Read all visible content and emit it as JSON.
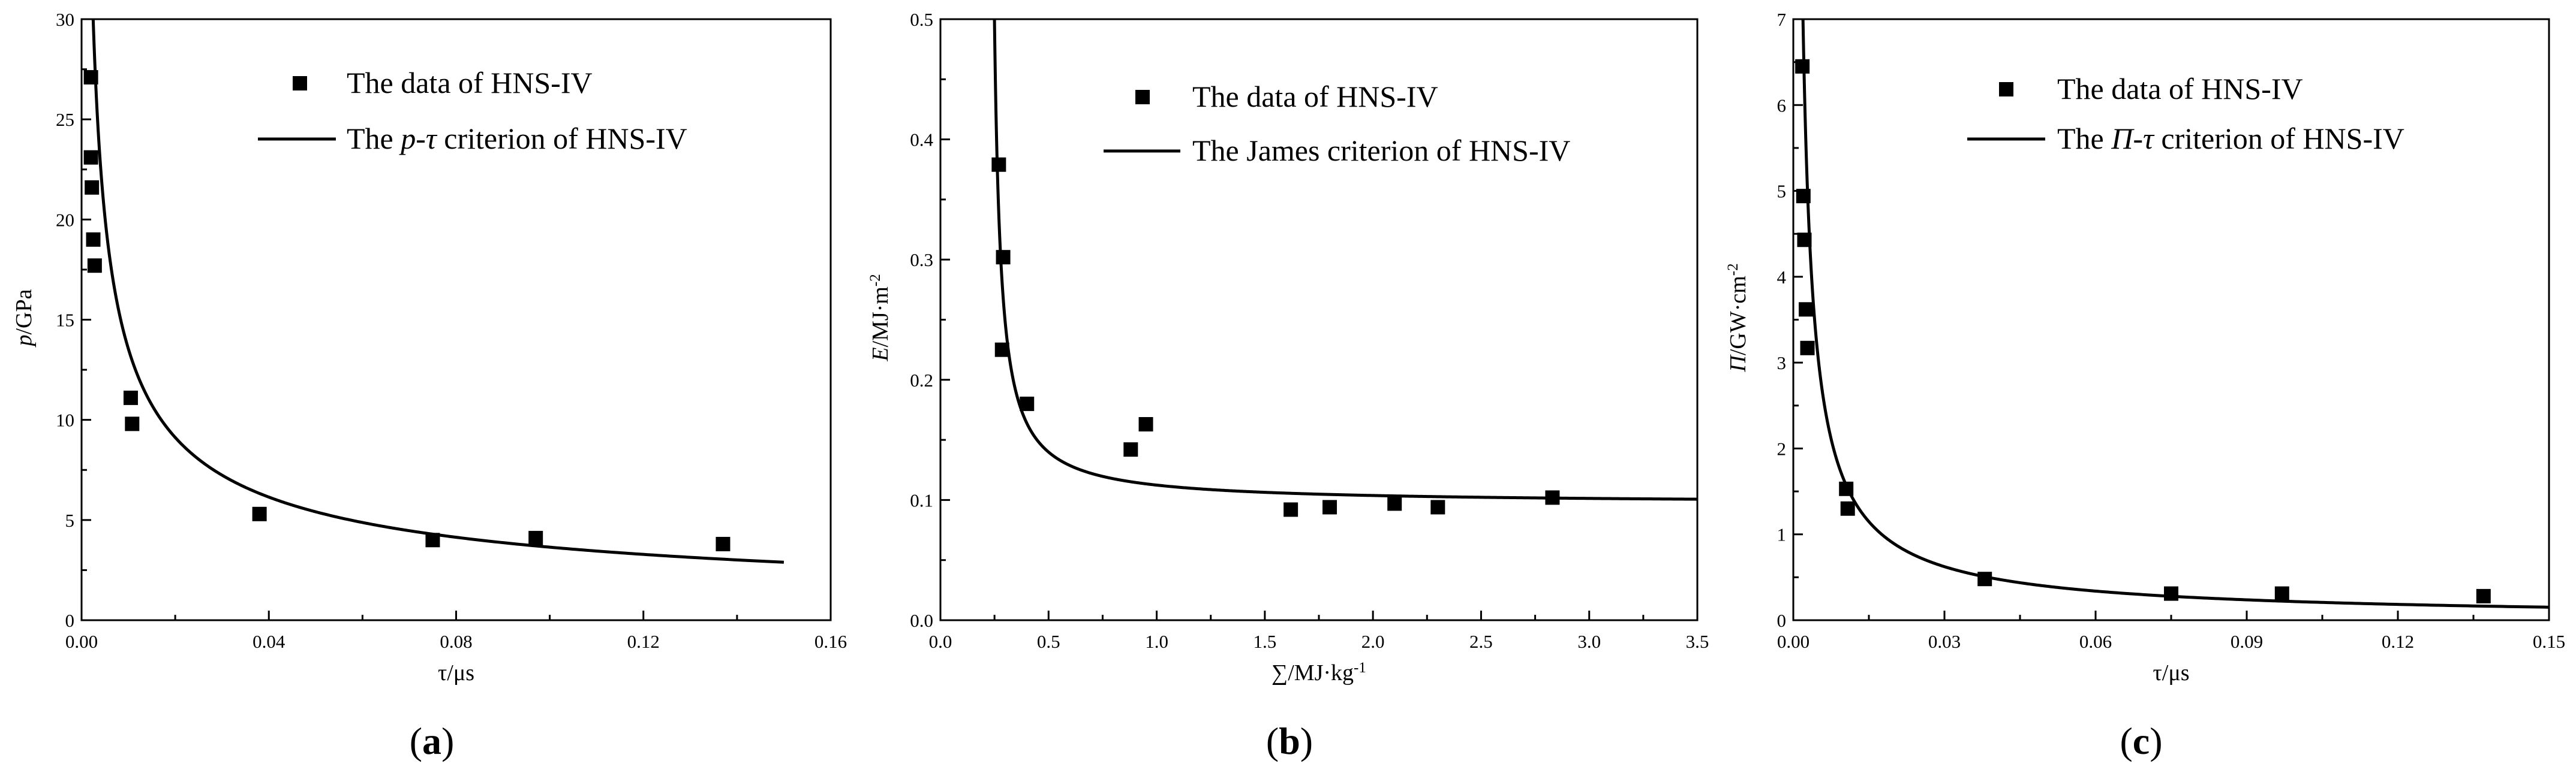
{
  "chart_data": [
    {
      "type": "scatter",
      "panel_label": "(a)",
      "panel_letter": "a",
      "xlabel": "τ/μs",
      "ylabel": "p/GPa",
      "ylabel_parts": [
        {
          "text": "p",
          "italic": true
        },
        {
          "text": "/GPa",
          "italic": false
        }
      ],
      "xlim": [
        0,
        0.16
      ],
      "ylim": [
        0,
        30
      ],
      "x_ticks": [
        0.0,
        0.04,
        0.08,
        0.12,
        0.16
      ],
      "x_tick_labels": [
        "0.00",
        "0.04",
        "0.08",
        "0.12",
        "0.16"
      ],
      "y_ticks": [
        0,
        5,
        10,
        15,
        20,
        25,
        30
      ],
      "y_tick_labels": [
        "0",
        "5",
        "10",
        "15",
        "20",
        "25",
        "30"
      ],
      "legend_position": "top-right",
      "series": [
        {
          "name": "The data of HNS-IV",
          "kind": "points",
          "x": [
            0.002,
            0.002,
            0.0022,
            0.0025,
            0.0028,
            0.0105,
            0.0108,
            0.038,
            0.075,
            0.097,
            0.137
          ],
          "y": [
            27.1,
            23.1,
            21.6,
            19.0,
            17.7,
            11.1,
            9.8,
            5.3,
            4.0,
            4.1,
            3.8
          ]
        },
        {
          "name": "The p-τ criterion of HNS-IV",
          "name_parts": [
            {
              "text": "The ",
              "italic": false
            },
            {
              "text": "p",
              "italic": true
            },
            {
              "text": "-",
              "italic": false
            },
            {
              "text": "τ",
              "italic": true
            },
            {
              "text": " criterion of HNS-IV",
              "italic": false
            }
          ],
          "kind": "curve",
          "model": "power",
          "coef": 0.981,
          "exponent": -0.57,
          "x_range": [
            0.0016,
            0.15
          ]
        }
      ]
    },
    {
      "type": "scatter",
      "panel_label": "(b)",
      "panel_letter": "b",
      "xlabel": "∑/MJ·kg-1",
      "xlabel_parts": [
        {
          "text": "∑/MJ·kg",
          "italic": false,
          "sup": false
        },
        {
          "text": "-1",
          "italic": false,
          "sup": true
        }
      ],
      "ylabel": "E/MJ·m-2",
      "ylabel_parts": [
        {
          "text": "E",
          "italic": true,
          "sup": false
        },
        {
          "text": "/MJ·m",
          "italic": false,
          "sup": false
        },
        {
          "text": "-2",
          "italic": false,
          "sup": true
        }
      ],
      "xlim": [
        0,
        3.5
      ],
      "ylim": [
        0,
        0.5
      ],
      "x_ticks": [
        0.0,
        0.5,
        1.0,
        1.5,
        2.0,
        2.5,
        3.0,
        3.5
      ],
      "x_tick_labels": [
        "0.0",
        "0.5",
        "1.0",
        "1.5",
        "2.0",
        "2.5",
        "3.0",
        "3.5"
      ],
      "y_ticks": [
        0.0,
        0.1,
        0.2,
        0.3,
        0.4,
        0.5
      ],
      "y_tick_labels": [
        "0.0",
        "0.1",
        "0.2",
        "0.3",
        "0.4",
        "0.5"
      ],
      "legend_position": "top-right",
      "series": [
        {
          "name": "The data of HNS-IV",
          "kind": "points",
          "x": [
            0.27,
            0.29,
            0.285,
            0.4,
            0.88,
            0.95,
            1.62,
            1.8,
            2.1,
            2.3,
            2.83
          ],
          "y": [
            0.379,
            0.302,
            0.225,
            0.18,
            0.142,
            0.163,
            0.092,
            0.094,
            0.097,
            0.094,
            0.102
          ]
        },
        {
          "name": "The James criterion of HNS-IV",
          "kind": "curve",
          "model": "hyperbola",
          "asymptote_x": 0.22,
          "asymptote_y": 0.097,
          "coef": 0.012,
          "x_range": [
            0.245,
            3.5
          ]
        }
      ]
    },
    {
      "type": "scatter",
      "panel_label": "(c)",
      "panel_letter": "c",
      "xlabel": "τ/μs",
      "ylabel": "Π/GW·cm-2",
      "ylabel_parts": [
        {
          "text": "Π",
          "italic": true,
          "sup": false
        },
        {
          "text": "/GW·cm",
          "italic": false,
          "sup": false
        },
        {
          "text": "-2",
          "italic": false,
          "sup": true
        }
      ],
      "xlim": [
        0,
        0.15
      ],
      "ylim": [
        0,
        7
      ],
      "x_ticks": [
        0.0,
        0.03,
        0.06,
        0.09,
        0.12,
        0.15
      ],
      "x_tick_labels": [
        "0.00",
        "0.03",
        "0.06",
        "0.09",
        "0.12",
        "0.15"
      ],
      "y_ticks": [
        0,
        1,
        2,
        3,
        4,
        5,
        6,
        7
      ],
      "y_tick_labels": [
        "0",
        "1",
        "2",
        "3",
        "4",
        "5",
        "6",
        "7"
      ],
      "legend_position": "top-right",
      "series": [
        {
          "name": "The data of HNS-IV",
          "kind": "points",
          "x": [
            0.0018,
            0.002,
            0.0022,
            0.0025,
            0.0028,
            0.0105,
            0.0108,
            0.038,
            0.075,
            0.097,
            0.137
          ],
          "y": [
            6.45,
            4.94,
            4.43,
            3.62,
            3.17,
            1.53,
            1.3,
            0.48,
            0.31,
            0.31,
            0.28
          ]
        },
        {
          "name": "The Π-τ criterion of HNS-IV",
          "name_parts": [
            {
              "text": "The ",
              "italic": false
            },
            {
              "text": "Π",
              "italic": true
            },
            {
              "text": "-",
              "italic": false
            },
            {
              "text": "τ",
              "italic": true
            },
            {
              "text": " criterion of HNS-IV",
              "italic": false
            }
          ],
          "kind": "curve",
          "model": "power",
          "coef": 0.0285,
          "exponent": -0.88,
          "x_range": [
            0.0013,
            0.15
          ]
        }
      ]
    }
  ]
}
